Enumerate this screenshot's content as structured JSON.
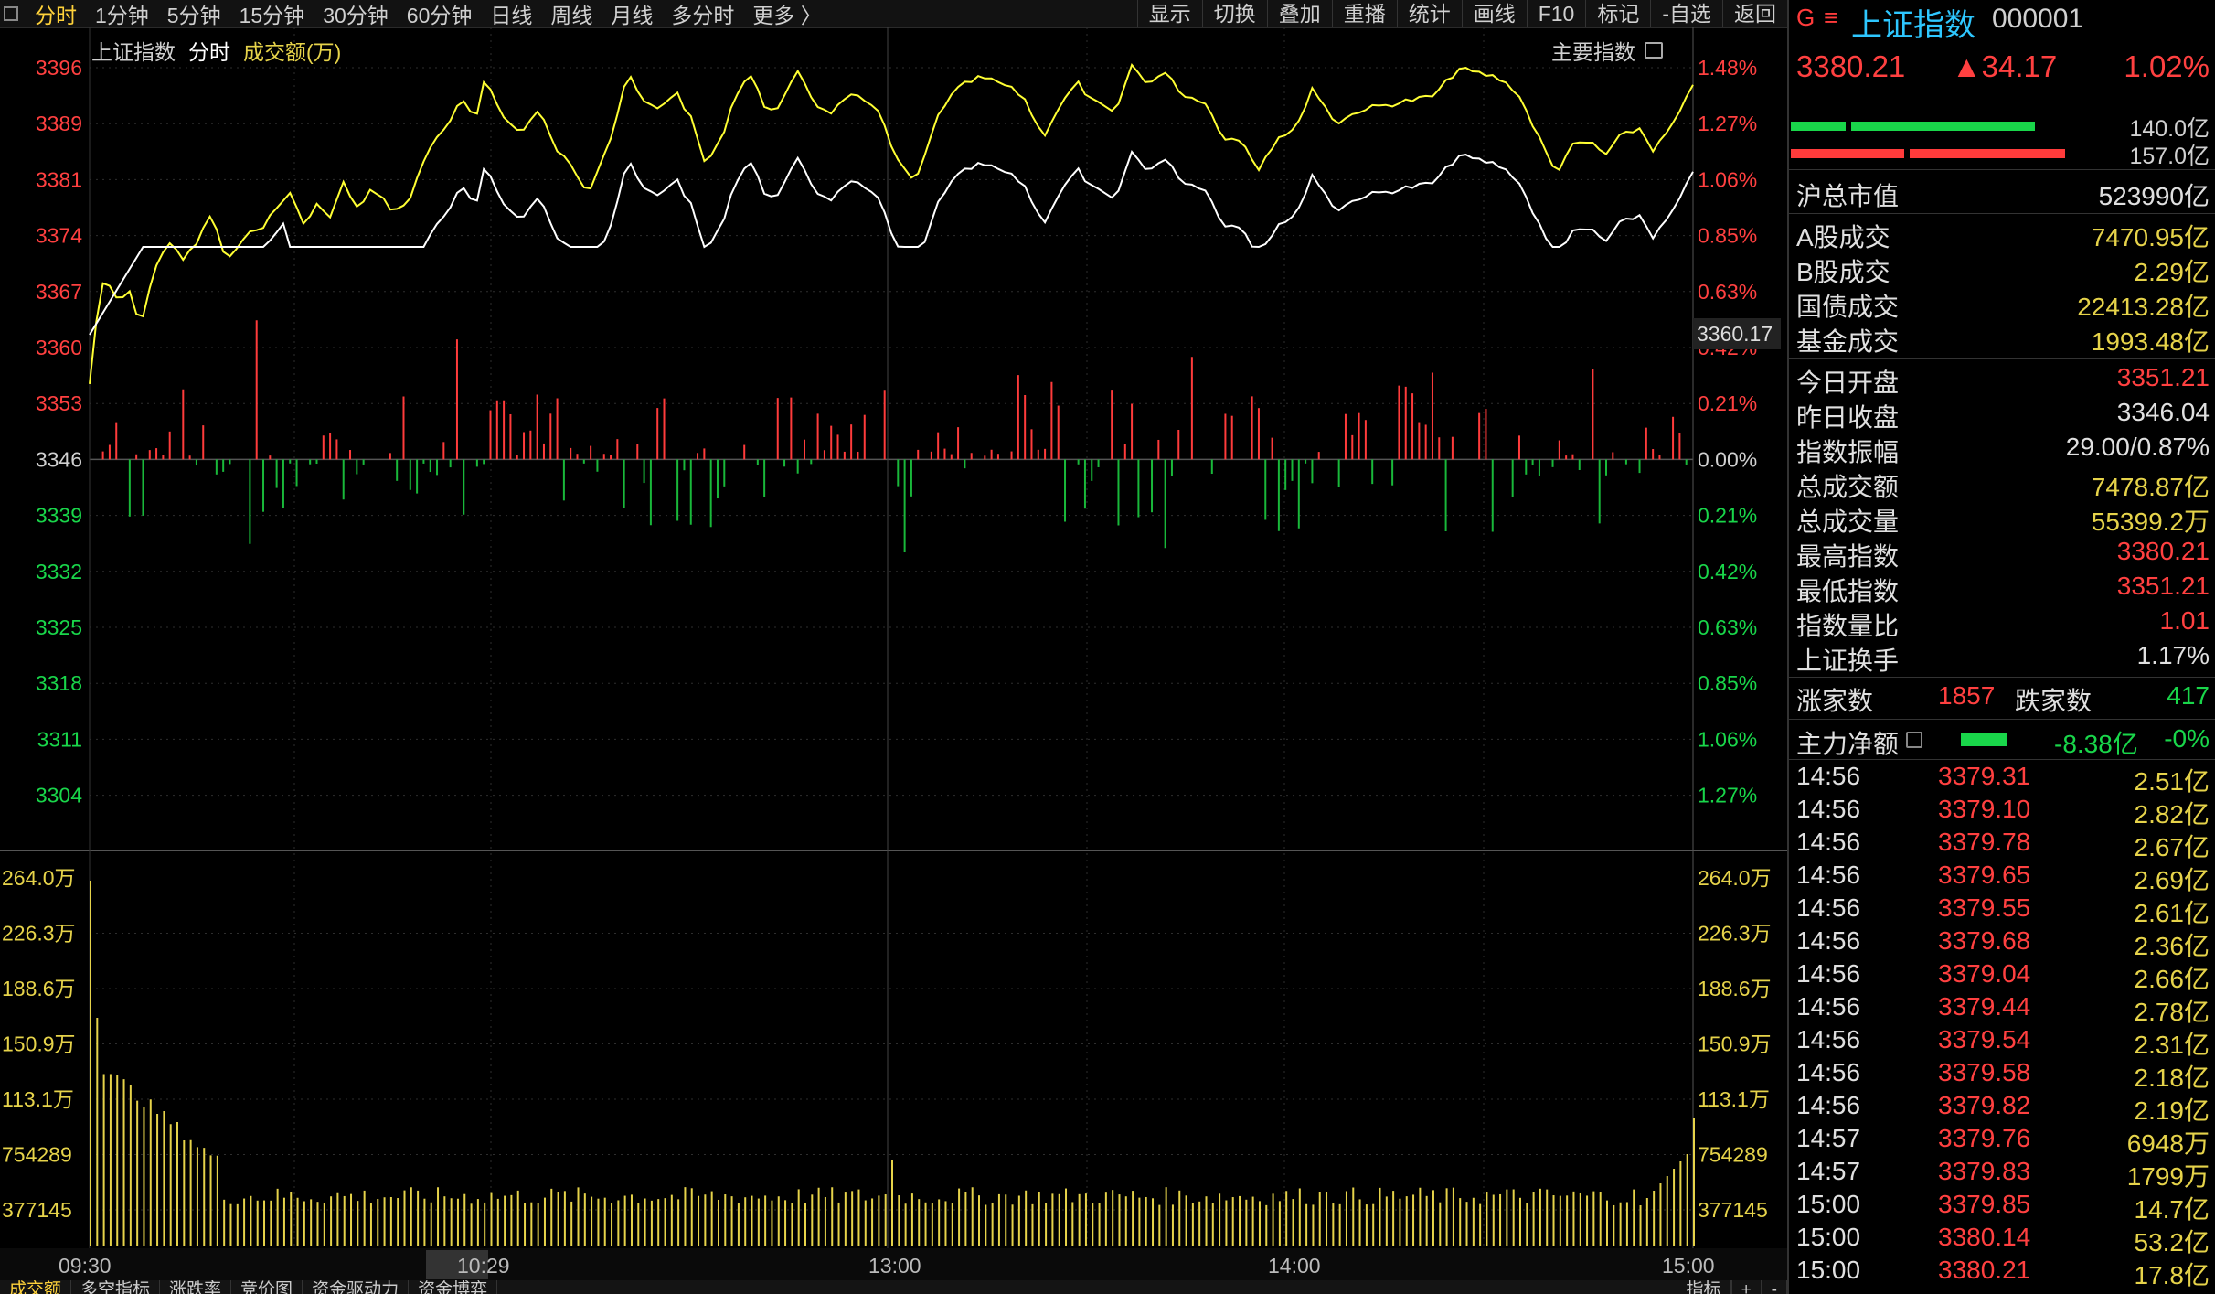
{
  "toolbar": {
    "periods": [
      "分时",
      "1分钟",
      "5分钟",
      "15分钟",
      "30分钟",
      "60分钟",
      "日线",
      "周线",
      "月线",
      "多分时",
      "更多 〉"
    ],
    "active_period": "分时",
    "tools": [
      "显示",
      "切换",
      "叠加",
      "重播",
      "统计",
      "画线",
      "F10",
      "标记",
      "-自选",
      "返回"
    ]
  },
  "chart": {
    "legend": {
      "name": "上证指数",
      "mode": "分时",
      "indicator": "成交额(万)"
    },
    "main_indicator_label": "主要指数",
    "current_price_tag": "3360.17",
    "price_axis": [
      "3396",
      "3389",
      "3381",
      "3374",
      "3367",
      "3360",
      "3353",
      "3346",
      "3339",
      "3332",
      "3325",
      "3318",
      "3311",
      "3304"
    ],
    "pct_axis": [
      "1.48%",
      "1.27%",
      "1.06%",
      "0.85%",
      "0.63%",
      "0.42%",
      "0.21%",
      "0.00%",
      "0.21%",
      "0.42%",
      "0.63%",
      "0.85%",
      "1.06%",
      "1.27%"
    ],
    "pct_colors": [
      "#ff4040",
      "#ff4040",
      "#ff4040",
      "#ff4040",
      "#ff4040",
      "#ff4040",
      "#ff4040",
      "#d0d0d0",
      "#19d64a",
      "#19d64a",
      "#19d64a",
      "#19d64a",
      "#19d64a",
      "#19d64a"
    ],
    "vol_axis": [
      "264.0万",
      "226.3万",
      "188.6万",
      "150.9万",
      "113.1万",
      "754289",
      "377145"
    ],
    "time_axis": [
      "09:30",
      "10:29",
      "13:00",
      "14:00",
      "15:00"
    ],
    "highlight_time": "10:29",
    "colors": {
      "price_line": "#ffff33",
      "avg_line": "#ffffff",
      "up": "#ff3b3b",
      "down": "#19b83a",
      "volume": "#e6d34a",
      "grid": "#3a3a3a"
    }
  },
  "bottom_tabs": [
    "成交额",
    "多空指标",
    "涨跌率",
    "竞价图",
    "资金驱动力",
    "资金博弈"
  ],
  "bottom_tools": [
    "指标",
    "+",
    "-"
  ],
  "quote": {
    "icon": "G",
    "name": "上证指数",
    "code": "000001",
    "price": "3380.21",
    "change": "▲34.17",
    "pct": "1.02%",
    "buy_vol": "140.0亿",
    "sell_vol": "157.0亿",
    "buy_fraction": 0.89,
    "sell_fraction": 1.0
  },
  "stats": [
    {
      "k": "沪总市值",
      "v": "523990亿",
      "c": "white"
    },
    {
      "k": "A股成交",
      "v": "7470.95亿",
      "c": "yellow"
    },
    {
      "k": "B股成交",
      "v": "2.29亿",
      "c": "yellow"
    },
    {
      "k": "国债成交",
      "v": "22413.28亿",
      "c": "yellow"
    },
    {
      "k": "基金成交",
      "v": "1993.48亿",
      "c": "yellow"
    },
    {
      "k": "今日开盘",
      "v": "3351.21",
      "c": "red"
    },
    {
      "k": "昨日收盘",
      "v": "3346.04",
      "c": "white"
    },
    {
      "k": "指数振幅",
      "v": "29.00/0.87%",
      "c": "white"
    },
    {
      "k": "总成交额",
      "v": "7478.87亿",
      "c": "yellow"
    },
    {
      "k": "总成交量",
      "v": "55399.2万",
      "c": "yellow"
    },
    {
      "k": "最高指数",
      "v": "3380.21",
      "c": "red"
    },
    {
      "k": "最低指数",
      "v": "3351.21",
      "c": "red"
    },
    {
      "k": "指数量比",
      "v": "1.01",
      "c": "red"
    },
    {
      "k": "上证换手",
      "v": "1.17%",
      "c": "white"
    }
  ],
  "breadth": {
    "up_label": "涨家数",
    "up": "1857",
    "down_label": "跌家数",
    "down": "417"
  },
  "net_flow": {
    "label": "主力净额",
    "value": "-8.38亿",
    "pct": "-0%"
  },
  "ticks": [
    {
      "t": "14:56",
      "p": "3379.31",
      "v": "2.51亿"
    },
    {
      "t": "14:56",
      "p": "3379.10",
      "v": "2.82亿"
    },
    {
      "t": "14:56",
      "p": "3379.78",
      "v": "2.67亿"
    },
    {
      "t": "14:56",
      "p": "3379.65",
      "v": "2.69亿"
    },
    {
      "t": "14:56",
      "p": "3379.55",
      "v": "2.61亿"
    },
    {
      "t": "14:56",
      "p": "3379.68",
      "v": "2.36亿"
    },
    {
      "t": "14:56",
      "p": "3379.04",
      "v": "2.66亿"
    },
    {
      "t": "14:56",
      "p": "3379.44",
      "v": "2.78亿"
    },
    {
      "t": "14:56",
      "p": "3379.54",
      "v": "2.31亿"
    },
    {
      "t": "14:56",
      "p": "3379.58",
      "v": "2.18亿"
    },
    {
      "t": "14:56",
      "p": "3379.82",
      "v": "2.19亿"
    },
    {
      "t": "14:57",
      "p": "3379.76",
      "v": "6948万"
    },
    {
      "t": "14:57",
      "p": "3379.83",
      "v": "1799万"
    },
    {
      "t": "15:00",
      "p": "3379.85",
      "v": "14.7亿"
    },
    {
      "t": "15:00",
      "p": "3380.14",
      "v": "53.2亿"
    },
    {
      "t": "15:00",
      "p": "3380.21",
      "v": "17.8亿"
    }
  ]
}
